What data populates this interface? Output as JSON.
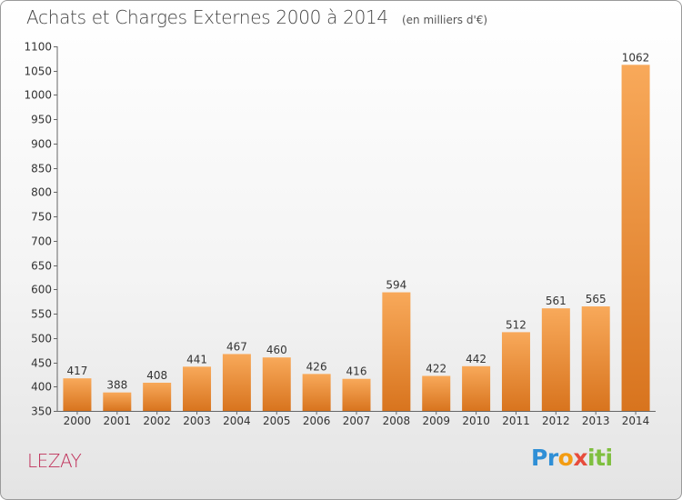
{
  "title": "Achats et Charges Externes 2000 à 2014",
  "subtitle": "(en milliers d'€)",
  "city": "LEZAY",
  "logo": {
    "text": "Proxiti",
    "parts": [
      "Pr",
      "o",
      "x",
      "iti"
    ]
  },
  "colors": {
    "bar_light": "#f8a95a",
    "bar_dark": "#d8741e",
    "title": "#444444",
    "city": "#c0305a",
    "axis": "#666666"
  },
  "chart_data": {
    "type": "bar",
    "categories": [
      "2000",
      "2001",
      "2002",
      "2003",
      "2004",
      "2005",
      "2006",
      "2007",
      "2008",
      "2009",
      "2010",
      "2011",
      "2012",
      "2013",
      "2014"
    ],
    "values": [
      417,
      388,
      408,
      441,
      467,
      460,
      426,
      416,
      594,
      422,
      442,
      512,
      561,
      565,
      1062
    ],
    "title": "Achats et Charges Externes 2000 à 2014",
    "xlabel": "",
    "ylabel": "",
    "ylim": [
      350,
      1100
    ],
    "yticks": [
      350,
      400,
      450,
      500,
      550,
      600,
      650,
      700,
      750,
      800,
      850,
      900,
      950,
      1000,
      1050,
      1100
    ],
    "grid": false,
    "data_labels": true
  }
}
